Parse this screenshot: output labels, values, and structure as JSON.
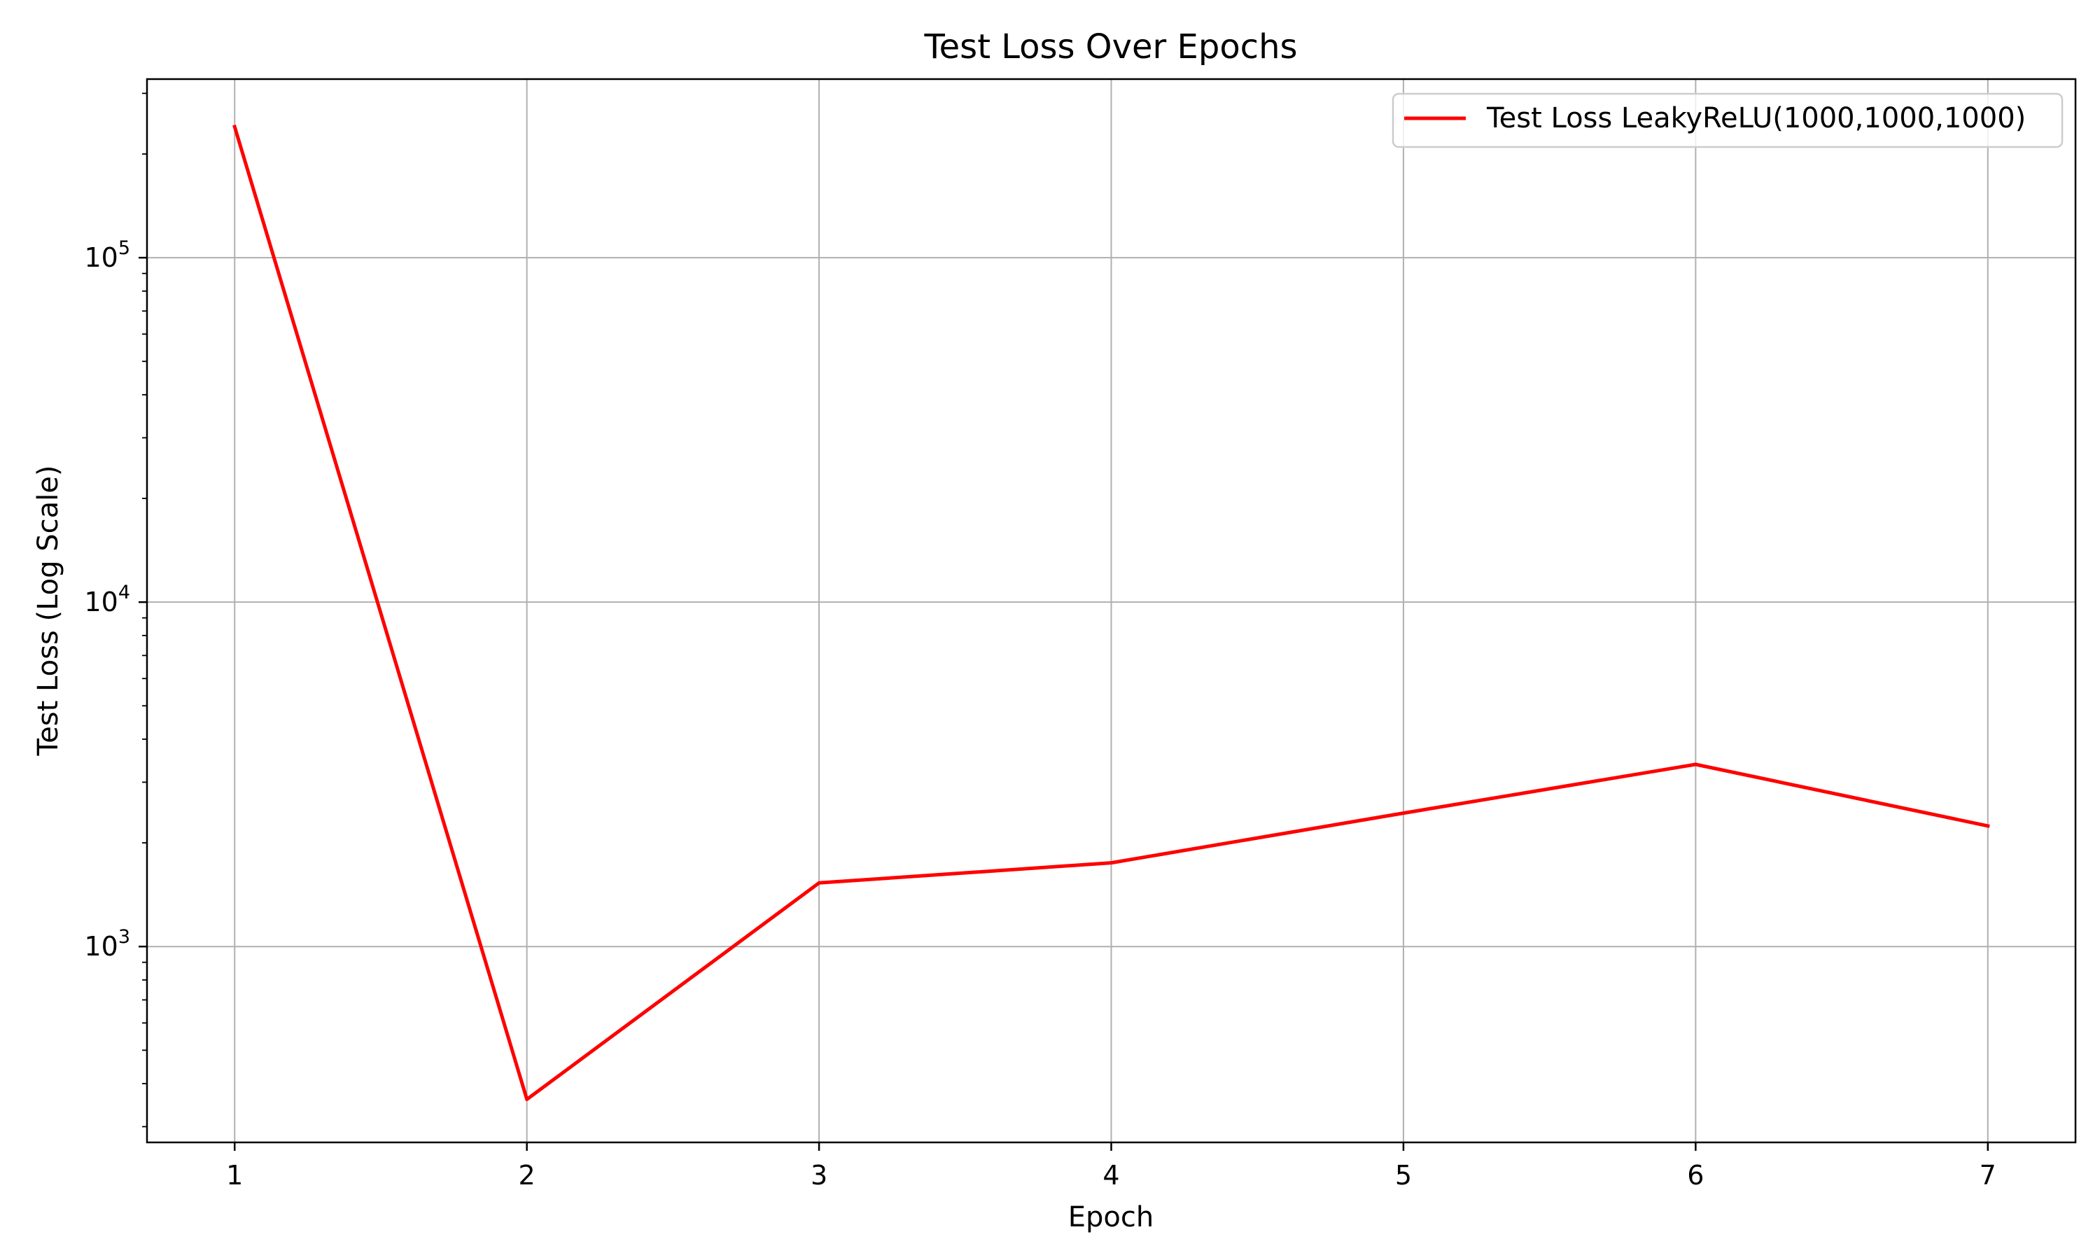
{
  "chart_data": {
    "type": "line",
    "title": "Test Loss Over Epochs",
    "xlabel": "Epoch",
    "ylabel": "Test Loss (Log Scale)",
    "yscale": "log",
    "xlim": [
      0.7,
      7.3
    ],
    "ylim": [
      270,
      330000
    ],
    "x_ticks": [
      1,
      2,
      3,
      4,
      5,
      6,
      7
    ],
    "y_ticks": [
      {
        "value": 1000,
        "base": "10",
        "exp": "3"
      },
      {
        "value": 10000,
        "base": "10",
        "exp": "4"
      },
      {
        "value": 100000,
        "base": "10",
        "exp": "5"
      }
    ],
    "grid": true,
    "legend_position": "top-right",
    "series": [
      {
        "name": "Test Loss LeakyReLU(1000,1000,1000)",
        "color": "#ff0000",
        "x": [
          1,
          2,
          3,
          4,
          5,
          6,
          7
        ],
        "y": [
          240000,
          360,
          1530,
          1750,
          2440,
          3380,
          2240
        ]
      }
    ]
  }
}
